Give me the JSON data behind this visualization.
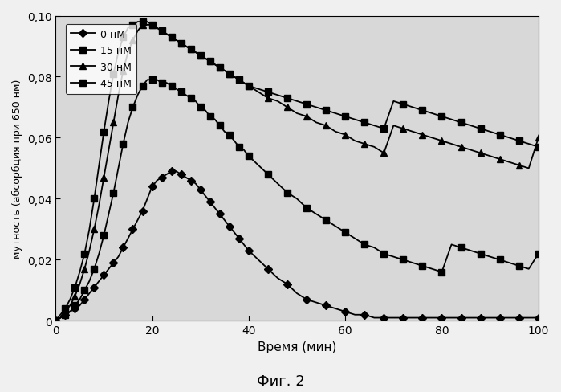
{
  "title": "Фиг. 2",
  "xlabel": "Время (мин)",
  "ylabel": "мутность (абсорбция при 650 нм)",
  "xlim": [
    0,
    100
  ],
  "ylim": [
    0,
    0.1
  ],
  "yticks": [
    0,
    0.02,
    0.04,
    0.06,
    0.08,
    0.1
  ],
  "xticks": [
    0,
    20,
    40,
    60,
    80,
    100
  ],
  "series": [
    {
      "label": "0 нМ",
      "marker": "D",
      "markersize": 5,
      "markevery": 2,
      "x": [
        0,
        1,
        2,
        3,
        4,
        5,
        6,
        7,
        8,
        9,
        10,
        11,
        12,
        13,
        14,
        15,
        16,
        17,
        18,
        19,
        20,
        21,
        22,
        23,
        24,
        25,
        26,
        27,
        28,
        29,
        30,
        31,
        32,
        33,
        34,
        35,
        36,
        37,
        38,
        39,
        40,
        42,
        44,
        46,
        48,
        50,
        52,
        54,
        56,
        58,
        60,
        62,
        64,
        66,
        68,
        70,
        72,
        74,
        76,
        78,
        80,
        82,
        84,
        86,
        88,
        90,
        92,
        94,
        96,
        98,
        100
      ],
      "y": [
        0,
        0.001,
        0.002,
        0.003,
        0.004,
        0.005,
        0.007,
        0.009,
        0.011,
        0.013,
        0.015,
        0.017,
        0.019,
        0.021,
        0.024,
        0.027,
        0.03,
        0.033,
        0.036,
        0.04,
        0.044,
        0.046,
        0.047,
        0.048,
        0.049,
        0.049,
        0.048,
        0.047,
        0.046,
        0.045,
        0.043,
        0.041,
        0.039,
        0.037,
        0.035,
        0.033,
        0.031,
        0.029,
        0.027,
        0.025,
        0.023,
        0.02,
        0.017,
        0.014,
        0.012,
        0.009,
        0.007,
        0.006,
        0.005,
        0.004,
        0.003,
        0.002,
        0.002,
        0.001,
        0.001,
        0.001,
        0.001,
        0.001,
        0.001,
        0.001,
        0.001,
        0.001,
        0.001,
        0.001,
        0.001,
        0.001,
        0.001,
        0.001,
        0.001,
        0.001,
        0.001
      ]
    },
    {
      "label": "15 нМ",
      "marker": "s",
      "markersize": 6,
      "markevery": 2,
      "x": [
        0,
        1,
        2,
        3,
        4,
        5,
        6,
        7,
        8,
        9,
        10,
        11,
        12,
        13,
        14,
        15,
        16,
        17,
        18,
        19,
        20,
        21,
        22,
        23,
        24,
        25,
        26,
        27,
        28,
        29,
        30,
        31,
        32,
        33,
        34,
        35,
        36,
        37,
        38,
        39,
        40,
        42,
        44,
        46,
        48,
        50,
        52,
        54,
        56,
        58,
        60,
        62,
        64,
        66,
        68,
        70,
        72,
        74,
        76,
        78,
        80,
        82,
        84,
        86,
        88,
        90,
        92,
        94,
        96,
        98,
        100
      ],
      "y": [
        0,
        0.001,
        0.002,
        0.003,
        0.005,
        0.007,
        0.01,
        0.013,
        0.017,
        0.022,
        0.028,
        0.035,
        0.042,
        0.05,
        0.058,
        0.065,
        0.07,
        0.074,
        0.077,
        0.079,
        0.079,
        0.079,
        0.078,
        0.078,
        0.077,
        0.076,
        0.075,
        0.074,
        0.073,
        0.072,
        0.07,
        0.069,
        0.067,
        0.066,
        0.064,
        0.062,
        0.061,
        0.059,
        0.057,
        0.056,
        0.054,
        0.051,
        0.048,
        0.045,
        0.042,
        0.04,
        0.037,
        0.035,
        0.033,
        0.031,
        0.029,
        0.027,
        0.025,
        0.024,
        0.022,
        0.021,
        0.02,
        0.019,
        0.018,
        0.017,
        0.016,
        0.025,
        0.024,
        0.023,
        0.022,
        0.021,
        0.02,
        0.019,
        0.018,
        0.017,
        0.022
      ]
    },
    {
      "label": "30 нМ",
      "marker": "^",
      "markersize": 6,
      "markevery": 2,
      "x": [
        0,
        1,
        2,
        3,
        4,
        5,
        6,
        7,
        8,
        9,
        10,
        11,
        12,
        13,
        14,
        15,
        16,
        17,
        18,
        19,
        20,
        21,
        22,
        23,
        24,
        25,
        26,
        27,
        28,
        29,
        30,
        31,
        32,
        33,
        34,
        35,
        36,
        37,
        38,
        39,
        40,
        42,
        44,
        46,
        48,
        50,
        52,
        54,
        56,
        58,
        60,
        62,
        64,
        66,
        68,
        70,
        72,
        74,
        76,
        78,
        80,
        82,
        84,
        86,
        88,
        90,
        92,
        94,
        96,
        98,
        100
      ],
      "y": [
        0,
        0.001,
        0.003,
        0.005,
        0.008,
        0.012,
        0.017,
        0.023,
        0.03,
        0.038,
        0.047,
        0.056,
        0.065,
        0.074,
        0.082,
        0.088,
        0.092,
        0.095,
        0.097,
        0.097,
        0.097,
        0.096,
        0.095,
        0.094,
        0.093,
        0.092,
        0.091,
        0.09,
        0.089,
        0.088,
        0.087,
        0.086,
        0.085,
        0.084,
        0.083,
        0.082,
        0.081,
        0.08,
        0.079,
        0.078,
        0.077,
        0.075,
        0.073,
        0.072,
        0.07,
        0.068,
        0.067,
        0.065,
        0.064,
        0.062,
        0.061,
        0.059,
        0.058,
        0.057,
        0.055,
        0.064,
        0.063,
        0.062,
        0.061,
        0.06,
        0.059,
        0.058,
        0.057,
        0.056,
        0.055,
        0.054,
        0.053,
        0.052,
        0.051,
        0.05,
        0.06
      ]
    },
    {
      "label": "45 нМ",
      "marker": "s",
      "markersize": 6,
      "markevery": 2,
      "x": [
        0,
        1,
        2,
        3,
        4,
        5,
        6,
        7,
        8,
        9,
        10,
        11,
        12,
        13,
        14,
        15,
        16,
        17,
        18,
        19,
        20,
        21,
        22,
        23,
        24,
        25,
        26,
        27,
        28,
        29,
        30,
        31,
        32,
        33,
        34,
        35,
        36,
        37,
        38,
        39,
        40,
        42,
        44,
        46,
        48,
        50,
        52,
        54,
        56,
        58,
        60,
        62,
        64,
        66,
        68,
        70,
        72,
        74,
        76,
        78,
        80,
        82,
        84,
        86,
        88,
        90,
        92,
        94,
        96,
        98,
        100
      ],
      "y": [
        0,
        0.002,
        0.004,
        0.007,
        0.011,
        0.016,
        0.022,
        0.03,
        0.04,
        0.051,
        0.062,
        0.072,
        0.081,
        0.088,
        0.093,
        0.096,
        0.097,
        0.098,
        0.098,
        0.098,
        0.097,
        0.096,
        0.095,
        0.094,
        0.093,
        0.092,
        0.091,
        0.09,
        0.089,
        0.088,
        0.087,
        0.086,
        0.085,
        0.084,
        0.083,
        0.082,
        0.081,
        0.08,
        0.079,
        0.078,
        0.077,
        0.076,
        0.075,
        0.074,
        0.073,
        0.072,
        0.071,
        0.07,
        0.069,
        0.068,
        0.067,
        0.066,
        0.065,
        0.064,
        0.063,
        0.072,
        0.071,
        0.07,
        0.069,
        0.068,
        0.067,
        0.066,
        0.065,
        0.064,
        0.063,
        0.062,
        0.061,
        0.06,
        0.059,
        0.058,
        0.057
      ]
    }
  ],
  "plot_bg_color": "#d8d8d8",
  "fig_bg_color": "#f0f0f0",
  "fig_width": 6.99,
  "fig_height": 4.89,
  "dpi": 100
}
